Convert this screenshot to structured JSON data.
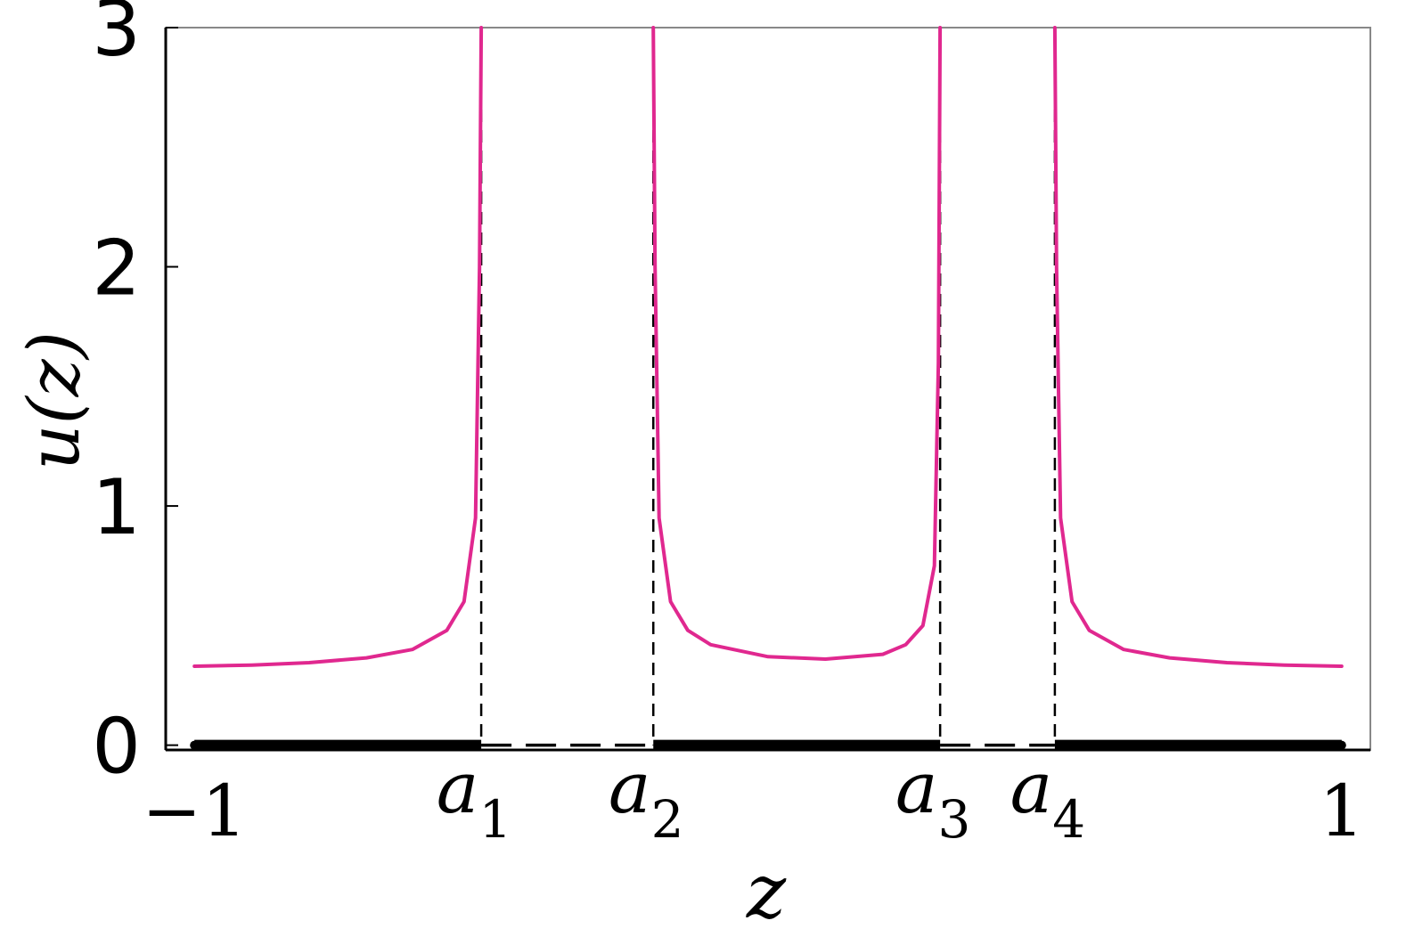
{
  "chart_data": {
    "type": "line",
    "title": "",
    "xlabel": "z",
    "ylabel": "u(z)",
    "xlim": [
      -1.05,
      1.05
    ],
    "ylim": [
      -0.02,
      3
    ],
    "grid": false,
    "y_ticks": [
      {
        "value": 0,
        "label": "0"
      },
      {
        "value": 1,
        "label": "1"
      },
      {
        "value": 2,
        "label": "2"
      },
      {
        "value": 3,
        "label": "3"
      }
    ],
    "x_ticks": [
      {
        "value": -1,
        "label": "−1"
      },
      {
        "value": -0.5,
        "label": "a",
        "sub": "1"
      },
      {
        "value": -0.2,
        "label": "a",
        "sub": "2"
      },
      {
        "value": 0.3,
        "label": "a",
        "sub": "3"
      },
      {
        "value": 0.5,
        "label": "a",
        "sub": "4"
      },
      {
        "value": 1,
        "label": "1"
      }
    ],
    "singularities": [
      -0.5,
      -0.2,
      0.3,
      0.5
    ],
    "series": [
      {
        "style": "solid-pink",
        "color": "#e0288f",
        "segments": [
          {
            "x": [
              -1.0,
              -0.9,
              -0.8,
              -0.7,
              -0.62,
              -0.56,
              -0.53,
              -0.51,
              -0.503,
              -0.5
            ],
            "y": [
              0.33,
              0.335,
              0.345,
              0.365,
              0.4,
              0.48,
              0.6,
              0.95,
              2.0,
              3.0
            ]
          },
          {
            "x": [
              -0.2,
              -0.197,
              -0.19,
              -0.17,
              -0.14,
              -0.1,
              0.0,
              0.1,
              0.2,
              0.24,
              0.27,
              0.29,
              0.297,
              0.3
            ],
            "y": [
              3.0,
              2.0,
              0.95,
              0.6,
              0.48,
              0.42,
              0.37,
              0.36,
              0.38,
              0.42,
              0.5,
              0.75,
              1.6,
              3.0
            ]
          },
          {
            "x": [
              0.5,
              0.503,
              0.51,
              0.53,
              0.56,
              0.62,
              0.7,
              0.8,
              0.9,
              1.0
            ],
            "y": [
              3.0,
              2.0,
              0.95,
              0.6,
              0.48,
              0.4,
              0.365,
              0.345,
              0.335,
              0.33
            ]
          }
        ]
      }
    ],
    "support_intervals": [
      [
        -1,
        -0.5
      ],
      [
        -0.2,
        0.3
      ],
      [
        0.5,
        1
      ]
    ],
    "gap_intervals": [
      [
        -0.5,
        -0.2
      ],
      [
        0.3,
        0.5
      ]
    ],
    "colors": {
      "curve": "#e0288f",
      "axes": "#000000",
      "frame": "#888888"
    }
  }
}
